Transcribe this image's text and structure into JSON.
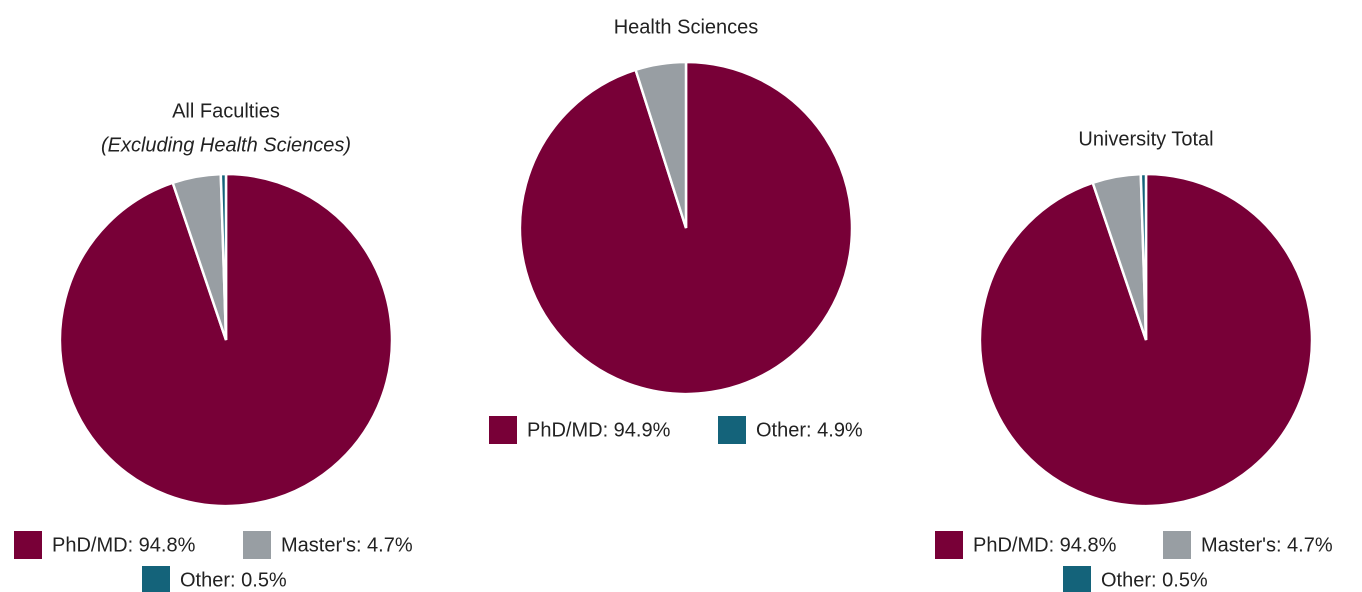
{
  "chart_data": [
    {
      "type": "pie",
      "title": "All Faculties",
      "subtitle": "(Excluding Health Sciences)",
      "categories": [
        "PhD/MD: 94.8%",
        "Master's: 4.7%",
        "Other: 0.5%"
      ],
      "values": [
        94.8,
        4.7,
        0.5
      ],
      "colors": [
        "#780037",
        "#989ea3",
        "#14637a"
      ],
      "legend_colors": [
        "#780037",
        "#989ea3",
        "#14637a"
      ]
    },
    {
      "type": "pie",
      "title": "Health Sciences",
      "categories": [
        "PhD/MD: 94.9%",
        "Other: 4.9%"
      ],
      "values": [
        94.9,
        4.9
      ],
      "colors": [
        "#780037",
        "#989ea3"
      ],
      "legend_colors": [
        "#780037",
        "#14637a"
      ]
    },
    {
      "type": "pie",
      "title": "University Total",
      "categories": [
        "PhD/MD: 94.8%",
        "Master's: 4.7%",
        "Other: 0.5%"
      ],
      "values": [
        94.8,
        4.7,
        0.5
      ],
      "colors": [
        "#780037",
        "#989ea3",
        "#14637a"
      ],
      "legend_colors": [
        "#780037",
        "#989ea3",
        "#14637a"
      ]
    }
  ]
}
